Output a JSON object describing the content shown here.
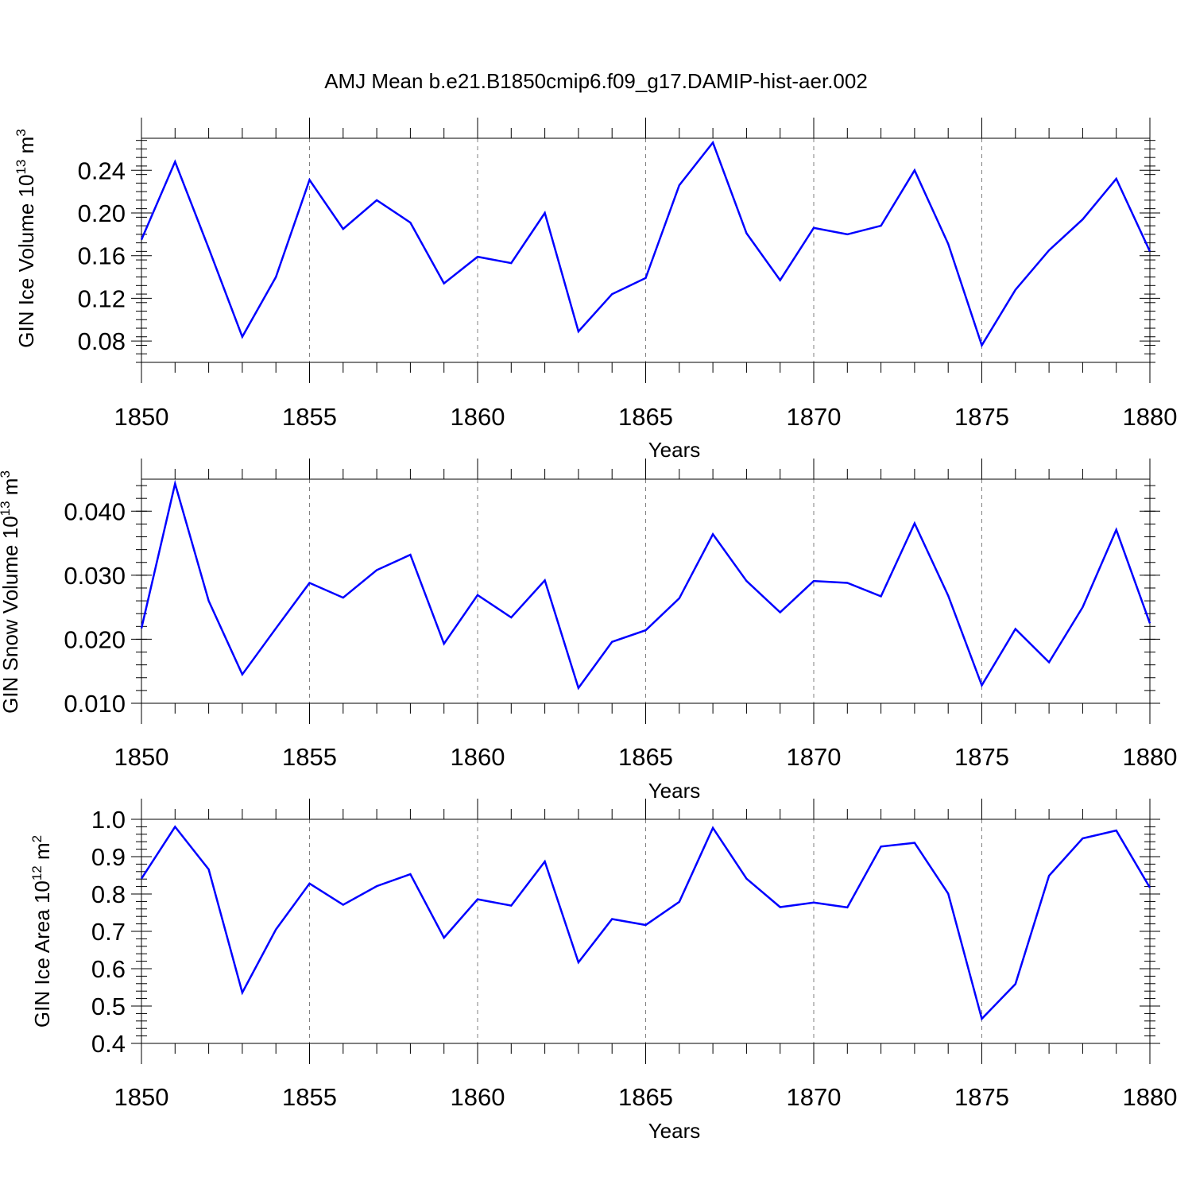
{
  "title": "AMJ Mean b.e21.B1850cmip6.f09_g17.DAMIP-hist-aer.002",
  "chart_data": [
    {
      "type": "line",
      "ylabel": "GIN Ice Volume",
      "yunit": {
        "base": "10",
        "exp": "13",
        "unit": "m",
        "unit_exp": "3"
      },
      "xlabel": "Years",
      "xlim": [
        1850,
        1880
      ],
      "ylim": [
        0.06,
        0.27
      ],
      "x_ticks": [
        "1850",
        "1855",
        "1860",
        "1865",
        "1870",
        "1875",
        "1880"
      ],
      "y_ticks": [
        "0.08",
        "0.12",
        "0.16",
        "0.20",
        "0.24"
      ],
      "grid": "dashed vertical at major x ticks",
      "series": [
        {
          "color": "#0000ff",
          "x": [
            1850,
            1851,
            1852,
            1853,
            1854,
            1855,
            1856,
            1857,
            1858,
            1859,
            1860,
            1861,
            1862,
            1863,
            1864,
            1865,
            1866,
            1867,
            1868,
            1869,
            1870,
            1871,
            1872,
            1873,
            1874,
            1875,
            1876,
            1877,
            1878,
            1879,
            1880
          ],
          "values": [
            0.175,
            0.248,
            0.167,
            0.084,
            0.14,
            0.231,
            0.185,
            0.212,
            0.191,
            0.134,
            0.159,
            0.153,
            0.2,
            0.089,
            0.124,
            0.139,
            0.226,
            0.266,
            0.181,
            0.137,
            0.186,
            0.18,
            0.188,
            0.24,
            0.171,
            0.076,
            0.128,
            0.165,
            0.194,
            0.232,
            0.164
          ]
        }
      ]
    },
    {
      "type": "line",
      "ylabel": "GIN Snow Volume",
      "yunit": {
        "base": "10",
        "exp": "13",
        "unit": "m",
        "unit_exp": "3"
      },
      "xlabel": "Years",
      "xlim": [
        1850,
        1880
      ],
      "ylim": [
        0.01,
        0.045
      ],
      "x_ticks": [
        "1850",
        "1855",
        "1860",
        "1865",
        "1870",
        "1875",
        "1880"
      ],
      "y_ticks": [
        "0.010",
        "0.020",
        "0.030",
        "0.040"
      ],
      "grid": "dashed vertical at major x ticks",
      "series": [
        {
          "color": "#0000ff",
          "x": [
            1850,
            1851,
            1852,
            1853,
            1854,
            1855,
            1856,
            1857,
            1858,
            1859,
            1860,
            1861,
            1862,
            1863,
            1864,
            1865,
            1866,
            1867,
            1868,
            1869,
            1870,
            1871,
            1872,
            1873,
            1874,
            1875,
            1876,
            1877,
            1878,
            1879,
            1880
          ],
          "values": [
            0.0217,
            0.0443,
            0.026,
            0.0145,
            0.0217,
            0.0288,
            0.0265,
            0.0308,
            0.0332,
            0.0193,
            0.0269,
            0.0234,
            0.0292,
            0.0124,
            0.0196,
            0.0214,
            0.0264,
            0.0364,
            0.0291,
            0.0242,
            0.0291,
            0.0288,
            0.0267,
            0.0381,
            0.0268,
            0.0128,
            0.0216,
            0.0164,
            0.025,
            0.0371,
            0.0225
          ]
        }
      ]
    },
    {
      "type": "line",
      "ylabel": "GIN Ice Area",
      "yunit": {
        "base": "10",
        "exp": "12",
        "unit": "m",
        "unit_exp": "2"
      },
      "xlabel": "Years",
      "xlim": [
        1850,
        1880
      ],
      "ylim": [
        0.4,
        1.0
      ],
      "x_ticks": [
        "1850",
        "1855",
        "1860",
        "1865",
        "1870",
        "1875",
        "1880"
      ],
      "y_ticks": [
        "0.4",
        "0.5",
        "0.6",
        "0.7",
        "0.8",
        "0.9",
        "1.0"
      ],
      "grid": "dashed vertical at major x ticks",
      "series": [
        {
          "color": "#0000ff",
          "x": [
            1850,
            1851,
            1852,
            1853,
            1854,
            1855,
            1856,
            1857,
            1858,
            1859,
            1860,
            1861,
            1862,
            1863,
            1864,
            1865,
            1866,
            1867,
            1868,
            1869,
            1870,
            1871,
            1872,
            1873,
            1874,
            1875,
            1876,
            1877,
            1878,
            1879,
            1880
          ],
          "values": [
            0.841,
            0.98,
            0.866,
            0.536,
            0.705,
            0.828,
            0.771,
            0.821,
            0.853,
            0.683,
            0.786,
            0.769,
            0.887,
            0.617,
            0.733,
            0.717,
            0.779,
            0.977,
            0.841,
            0.765,
            0.777,
            0.764,
            0.927,
            0.937,
            0.801,
            0.466,
            0.559,
            0.849,
            0.949,
            0.97,
            0.817
          ]
        }
      ]
    }
  ]
}
